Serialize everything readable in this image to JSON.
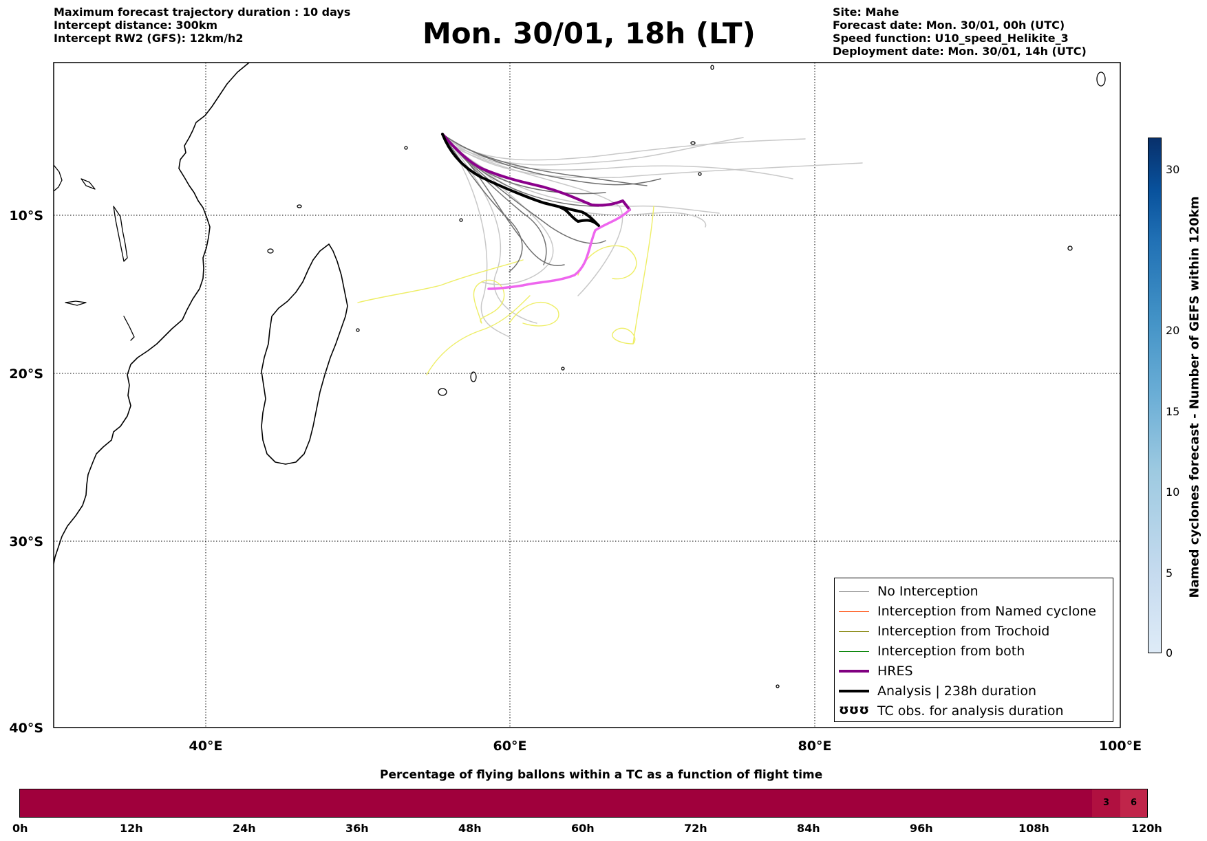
{
  "header": {
    "left_lines": [
      "Maximum forecast trajectory duration : 10 days",
      "Intercept distance: 300km",
      "Intercept RW2 (GFS):  12km/h2"
    ],
    "title": "Mon. 30/01, 18h (LT)",
    "right_lines": [
      "Site: Mahe",
      "Forecast date: Mon. 30/01, 00h (UTC)",
      "Speed function: U10_speed_Helikite_3",
      "Deployment date: Mon. 30/01, 14h (UTC)"
    ]
  },
  "map": {
    "lat_labels": [
      "10°S",
      "20°S",
      "30°S",
      "40°S"
    ],
    "lon_labels": [
      "40°E",
      "60°E",
      "80°E",
      "100°E"
    ],
    "lon_range": [
      30,
      100
    ],
    "lat_range": [
      -40,
      1
    ]
  },
  "legend": {
    "items": [
      {
        "label": "No Interception",
        "color": "#808080",
        "width": 1.5
      },
      {
        "label": "Interception from Named cyclone",
        "color": "#ff4500",
        "width": 1.5
      },
      {
        "label": "Interception from Trochoid",
        "color": "#808000",
        "width": 1.5
      },
      {
        "label": "Interception from both",
        "color": "#008000",
        "width": 1.5
      },
      {
        "label": "HRES",
        "color": "#800080",
        "width": 4
      },
      {
        "label": "Analysis | 238h duration",
        "color": "#000000",
        "width": 4
      },
      {
        "label": "TC obs. for analysis duration",
        "symbol": "ʊʊʊ"
      }
    ]
  },
  "colorbar": {
    "label": "Named cyclones forecast - Number of GEFS within 120km",
    "ticks": [
      "0",
      "5",
      "10",
      "15",
      "20",
      "30"
    ],
    "colors": [
      "#dbe9f6",
      "#c6dbef",
      "#9ecae1",
      "#6baed6",
      "#4292c6",
      "#2171b5",
      "#08519c",
      "#08306b"
    ]
  },
  "flight_bar": {
    "title": "Percentage of flying ballons within a TC as a function of flight time",
    "ticks": [
      "0h",
      "12h",
      "24h",
      "36h",
      "48h",
      "60h",
      "72h",
      "84h",
      "96h",
      "108h",
      "120h"
    ],
    "base_color": "#a0003c",
    "cells": [
      {
        "label": "3",
        "color": "#b01040"
      },
      {
        "label": "6",
        "color": "#c0254a"
      }
    ]
  }
}
